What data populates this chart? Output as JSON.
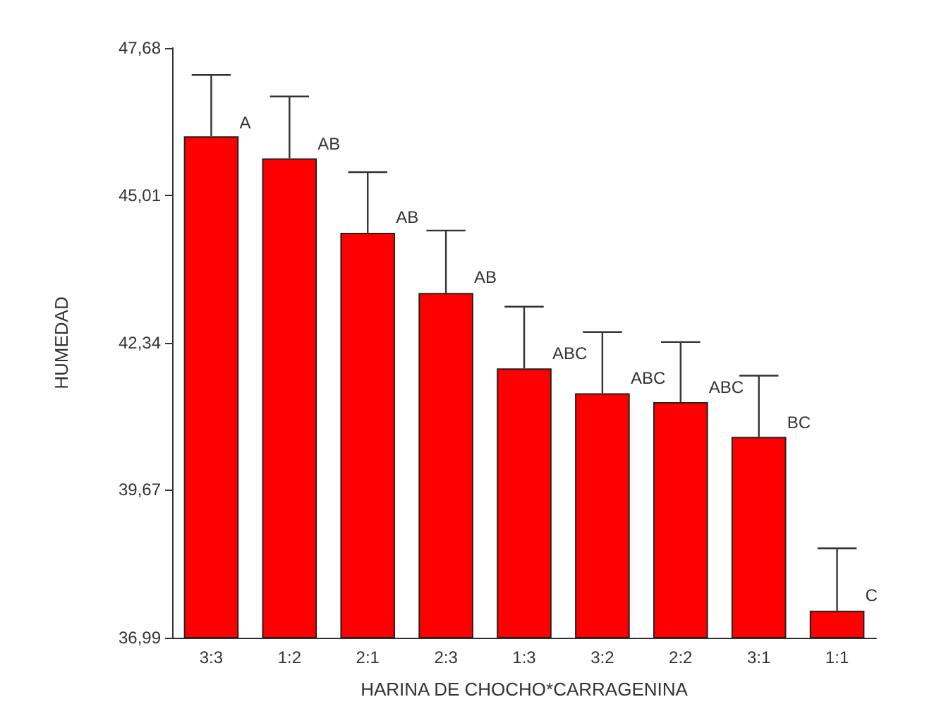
{
  "chart_data": {
    "type": "bar",
    "xlabel": "HARINA DE CHOCHO*CARRAGENINA",
    "ylabel": "HUMEDAD",
    "categories": [
      "3:3",
      "1:2",
      "2:1",
      "2:3",
      "1:3",
      "3:2",
      "2:2",
      "3:1",
      "1:1"
    ],
    "values": [
      46.08,
      45.68,
      44.33,
      43.24,
      41.87,
      41.42,
      41.26,
      40.63,
      37.48
    ],
    "errors": [
      [
        46.08,
        47.19
      ],
      [
        45.68,
        46.8
      ],
      [
        44.33,
        45.43
      ],
      [
        43.24,
        44.37
      ],
      [
        41.87,
        42.99
      ],
      [
        41.42,
        42.53
      ],
      [
        41.26,
        42.35
      ],
      [
        40.63,
        41.74
      ],
      [
        37.48,
        38.61
      ]
    ],
    "color": "#ff0000",
    "ylim": [
      36.99,
      47.68
    ],
    "yticks": [
      {
        "value": 36.99,
        "label": "36,99"
      },
      {
        "value": 39.67,
        "label": "39,67"
      },
      {
        "value": 42.34,
        "label": "42,34"
      },
      {
        "value": 45.01,
        "label": "45,01"
      },
      {
        "value": 47.68,
        "label": "47,68"
      }
    ],
    "grid": false,
    "annotations": [
      {
        "text": "A",
        "x": "3:3",
        "y": 46.33
      },
      {
        "text": "AB",
        "x": "1:2",
        "y": 45.94
      },
      {
        "text": "AB",
        "x": "2:1",
        "y": 44.61
      },
      {
        "text": "AB",
        "x": "2:3",
        "y": 43.52
      },
      {
        "text": "ABC",
        "x": "1:3",
        "y": 42.14
      },
      {
        "text": "ABC",
        "x": "3:2",
        "y": 41.7
      },
      {
        "text": "ABC",
        "x": "2:2",
        "y": 41.53
      },
      {
        "text": "BC",
        "x": "3:1",
        "y": 40.89
      },
      {
        "text": "C",
        "x": "1:1",
        "y": 37.76
      }
    ]
  }
}
